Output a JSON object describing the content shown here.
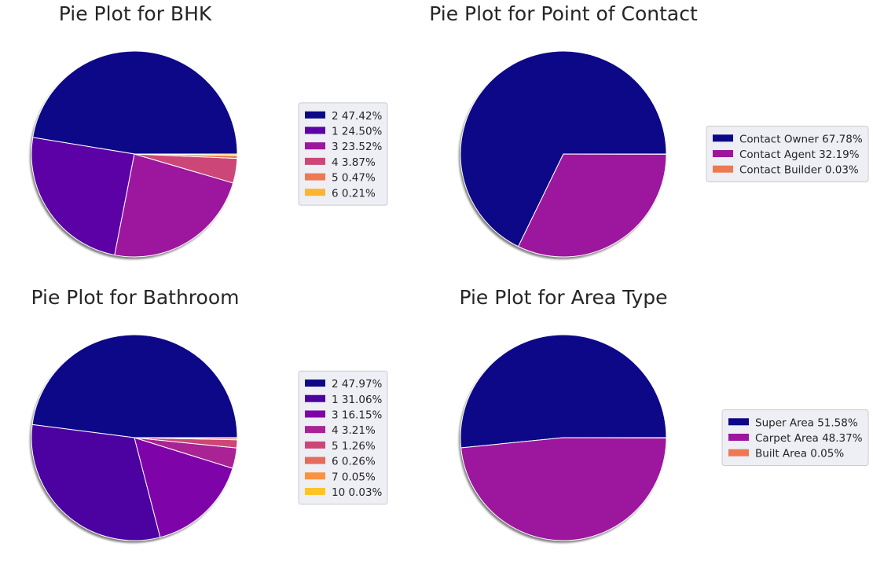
{
  "chart_data": [
    {
      "type": "pie",
      "title": "Pie Plot for BHK",
      "shadow": true,
      "legend_position": "right",
      "slices": [
        {
          "label": "2",
          "value": 47.42,
          "color": "#0d0887"
        },
        {
          "label": "1",
          "value": 24.5,
          "color": "#5c01a6"
        },
        {
          "label": "3",
          "value": 23.52,
          "color": "#9c179e"
        },
        {
          "label": "4",
          "value": 3.87,
          "color": "#cc4778"
        },
        {
          "label": "5",
          "value": 0.47,
          "color": "#ed7953"
        },
        {
          "label": "6",
          "value": 0.21,
          "color": "#fdb42f"
        }
      ],
      "legend_entries": [
        "2 47.42%",
        "1 24.50%",
        "3 23.52%",
        "4 3.87%",
        "5 0.47%",
        "6 0.21%"
      ]
    },
    {
      "type": "pie",
      "title": "Pie Plot for Point of Contact",
      "shadow": true,
      "legend_position": "right",
      "slices": [
        {
          "label": "Contact Owner",
          "value": 67.78,
          "color": "#0d0887"
        },
        {
          "label": "Contact Agent",
          "value": 32.19,
          "color": "#9c179e"
        },
        {
          "label": "Contact Builder",
          "value": 0.03,
          "color": "#ed7953"
        }
      ],
      "legend_entries": [
        "Contact Owner 67.78%",
        "Contact Agent 32.19%",
        "Contact Builder 0.03%"
      ]
    },
    {
      "type": "pie",
      "title": "Pie Plot for Bathroom",
      "shadow": true,
      "legend_position": "right",
      "slices": [
        {
          "label": "2",
          "value": 47.97,
          "color": "#0d0887"
        },
        {
          "label": "1",
          "value": 31.06,
          "color": "#4c02a1"
        },
        {
          "label": "3",
          "value": 16.15,
          "color": "#7e03a8"
        },
        {
          "label": "4",
          "value": 3.21,
          "color": "#a92395"
        },
        {
          "label": "5",
          "value": 1.26,
          "color": "#cc4778"
        },
        {
          "label": "6",
          "value": 0.26,
          "color": "#e56b5d"
        },
        {
          "label": "7",
          "value": 0.05,
          "color": "#f89441"
        },
        {
          "label": "10",
          "value": 0.03,
          "color": "#fdc328"
        }
      ],
      "legend_entries": [
        "2 47.97%",
        "1 31.06%",
        "3 16.15%",
        "4 3.21%",
        "5 1.26%",
        "6 0.26%",
        "7 0.05%",
        "10 0.03%"
      ]
    },
    {
      "type": "pie",
      "title": "Pie Plot for Area Type",
      "shadow": true,
      "legend_position": "right",
      "slices": [
        {
          "label": "Super Area",
          "value": 51.58,
          "color": "#0d0887"
        },
        {
          "label": "Carpet Area",
          "value": 48.37,
          "color": "#9c179e"
        },
        {
          "label": "Built Area",
          "value": 0.05,
          "color": "#ed7953"
        }
      ],
      "legend_entries": [
        "Super Area 51.58%",
        "Carpet Area 48.37%",
        "Built Area 0.05%"
      ]
    }
  ]
}
